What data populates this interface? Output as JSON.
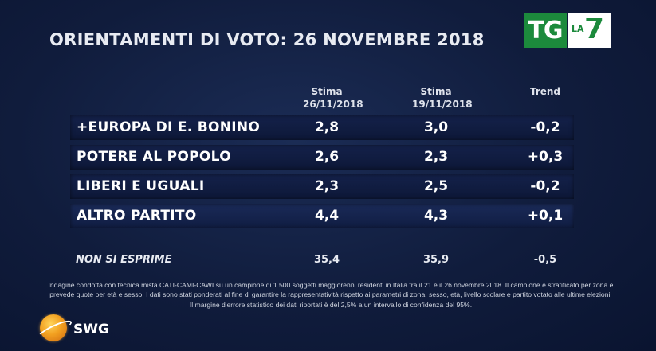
{
  "title": "ORIENTAMENTI DI VOTO: 26 NOVEMBRE 2018",
  "broadcaster": {
    "tg": "TG",
    "la": "LA",
    "seven": "7"
  },
  "columns": [
    {
      "line1": "Stima",
      "line2": "26/11/2018"
    },
    {
      "line1": "Stima",
      "line2": "19/11/2018"
    },
    {
      "line1": "Trend",
      "line2": ""
    }
  ],
  "rows": [
    {
      "name": "+EUROPA DI E. BONINO",
      "est_26": "2,8",
      "est_19": "3,0",
      "trend": "-0,2"
    },
    {
      "name": "POTERE AL POPOLO",
      "est_26": "2,6",
      "est_19": "2,3",
      "trend": "+0,3"
    },
    {
      "name": "LIBERI E UGUALI",
      "est_26": "2,3",
      "est_19": "2,5",
      "trend": "-0,2"
    },
    {
      "name": "ALTRO PARTITO",
      "est_26": "4,4",
      "est_19": "4,3",
      "trend": "+0,1"
    }
  ],
  "non_si_esprime": {
    "label": "NON SI ESPRIME",
    "est_26": "35,4",
    "est_19": "35,9",
    "trend": "-0,5"
  },
  "methodology_note": "Indagine condotta con tecnica mista CATI-CAMI-CAWI su un campione di 1.500 soggetti maggiorenni residenti in Italia tra il 21 e il 26 novembre 2018. Il campione è stratificato per zona e prevede quote per età e sesso. I dati sono stati ponderati al fine di garantire la rappresentatività rispetto ai parametri di zona, sesso, età, livello scolare e partito votato alle ultime elezioni. Il margine d'errore statistico dei dati riportati è del 2,5% a un intervallo di confidenza del 95%.",
  "source": "SWG",
  "colors": {
    "background": "#101c3c",
    "tg_green": "#1c8a3c",
    "swg_orange": "#f2a020"
  }
}
